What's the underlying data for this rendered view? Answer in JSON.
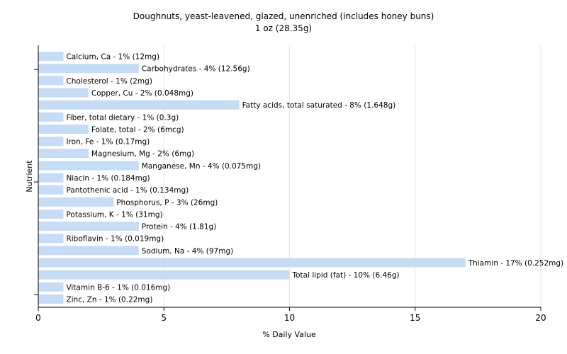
{
  "chart_data": {
    "type": "bar",
    "orientation": "horizontal",
    "title": "Doughnuts, yeast-leavened, glazed, unenriched (includes honey buns)",
    "subtitle": "1 oz (28.35g)",
    "xlabel": "% Daily Value",
    "ylabel": "Nutrient",
    "xlim": [
      0,
      20
    ],
    "xticks": [
      0,
      5,
      10,
      15,
      20
    ],
    "grid": true,
    "bar_color": "#c6dcf5",
    "categories": [
      "Calcium, Ca",
      "Carbohydrates",
      "Cholesterol",
      "Copper, Cu",
      "Fatty acids, total saturated",
      "Fiber, total dietary",
      "Folate, total",
      "Iron, Fe",
      "Magnesium, Mg",
      "Manganese, Mn",
      "Niacin",
      "Pantothenic acid",
      "Phosphorus, P",
      "Potassium, K",
      "Protein",
      "Riboflavin",
      "Sodium, Na",
      "Thiamin",
      "Total lipid (fat)",
      "Vitamin B-6",
      "Zinc, Zn"
    ],
    "values": [
      1,
      4,
      1,
      2,
      8,
      1,
      2,
      1,
      2,
      4,
      1,
      1,
      3,
      1,
      4,
      1,
      4,
      17,
      10,
      1,
      1
    ],
    "labels": [
      "Calcium, Ca - 1% (12mg)",
      "Carbohydrates - 4% (12.56g)",
      "Cholesterol - 1% (2mg)",
      "Copper, Cu - 2% (0.048mg)",
      "Fatty acids, total saturated - 8% (1.648g)",
      "Fiber, total dietary - 1% (0.3g)",
      "Folate, total - 2% (6mcg)",
      "Iron, Fe - 1% (0.17mg)",
      "Magnesium, Mg - 2% (6mg)",
      "Manganese, Mn - 4% (0.075mg)",
      "Niacin - 1% (0.184mg)",
      "Pantothenic acid - 1% (0.134mg)",
      "Phosphorus, P - 3% (26mg)",
      "Potassium, K - 1% (31mg)",
      "Protein - 4% (1.81g)",
      "Riboflavin - 1% (0.019mg)",
      "Sodium, Na - 4% (97mg)",
      "Thiamin - 17% (0.252mg)",
      "Total lipid (fat) - 10% (6.46g)",
      "Vitamin B-6 - 1% (0.016mg)",
      "Zinc, Zn - 1% (0.22mg)"
    ]
  }
}
